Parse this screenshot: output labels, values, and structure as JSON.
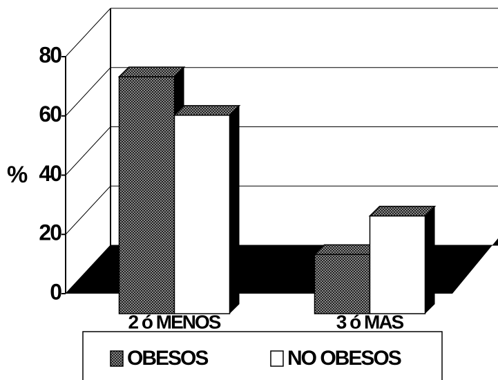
{
  "chart_data": {
    "type": "bar3d",
    "y_label": "%",
    "categories": [
      "2 ó MENOS",
      "3 ó MAS"
    ],
    "series": [
      {
        "name": "OBESOS",
        "color": "#666666",
        "values": [
          80,
          20
        ]
      },
      {
        "name": "NO OBESOS",
        "color": "#ffffff",
        "values": [
          67,
          33
        ]
      }
    ],
    "ylim": [
      0,
      80
    ],
    "yticks": [
      0,
      20,
      40,
      60,
      80
    ],
    "grid": true
  }
}
